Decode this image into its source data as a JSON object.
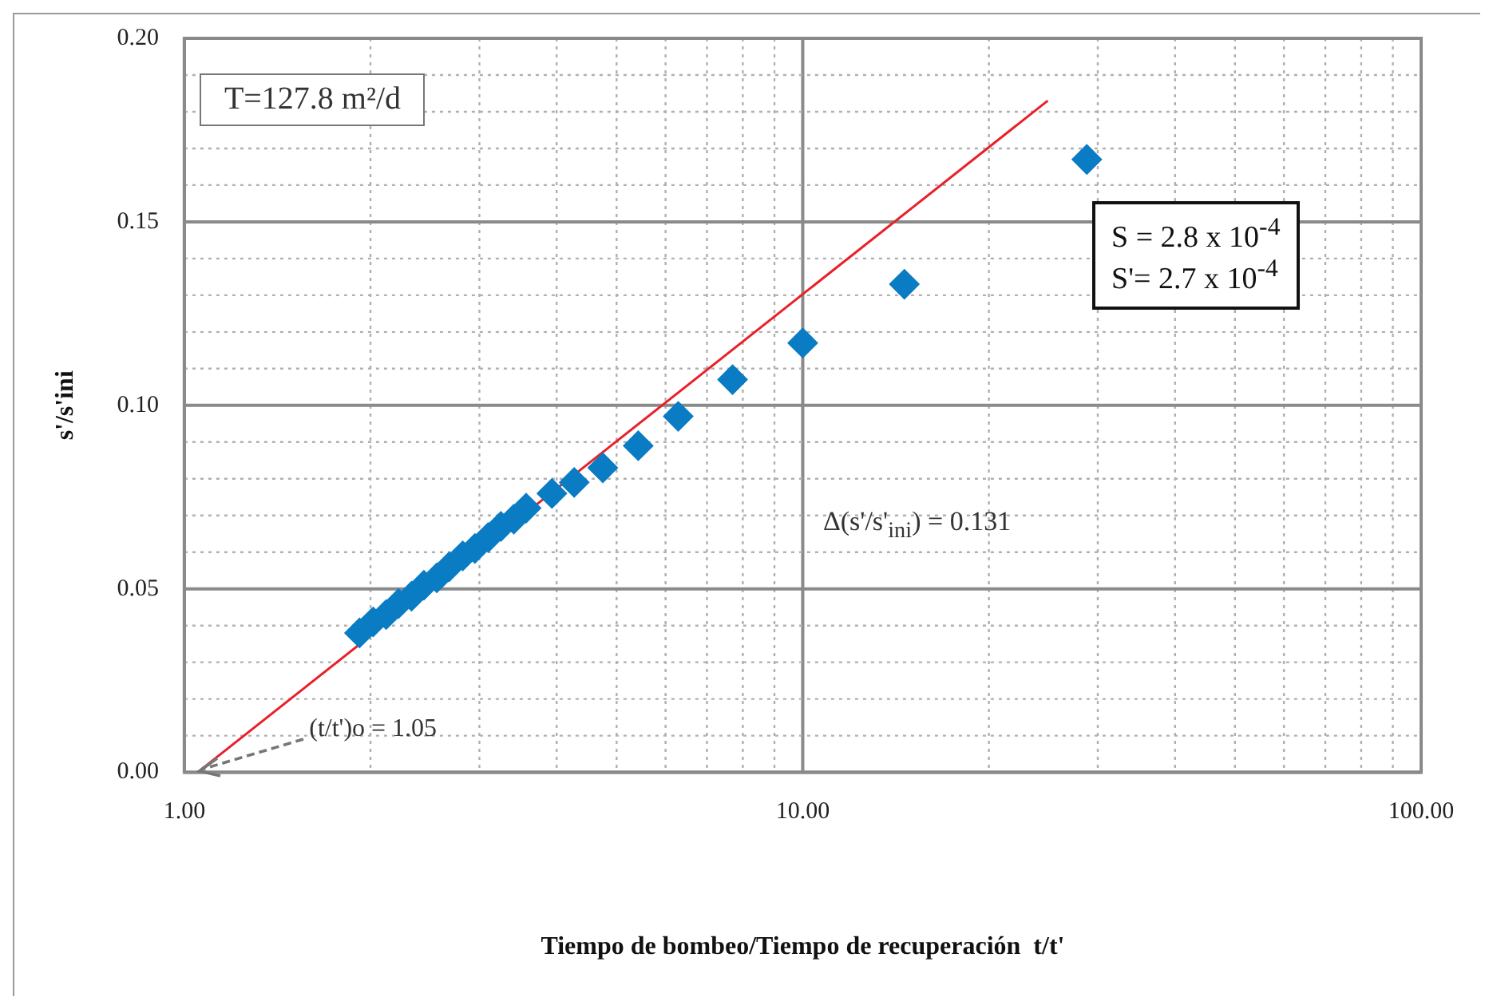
{
  "chart_data": {
    "type": "scatter",
    "log": "x",
    "xlabel": "Tiempo de bombeo/Tiempo de recuperación  t/t'",
    "ylabel": "s'/s'ini",
    "grid": true,
    "marker": "diamond",
    "xlim": [
      1,
      100
    ],
    "xticks": [
      {
        "value": 1,
        "label": "1.00"
      },
      {
        "value": 2,
        "label": null
      },
      {
        "value": 3,
        "label": null
      },
      {
        "value": 4,
        "label": null
      },
      {
        "value": 5,
        "label": null
      },
      {
        "value": 6,
        "label": null
      },
      {
        "value": 7,
        "label": null
      },
      {
        "value": 8,
        "label": null
      },
      {
        "value": 9,
        "label": null
      },
      {
        "value": 10,
        "label": "10.00"
      },
      {
        "value": 20,
        "label": null
      },
      {
        "value": 30,
        "label": null
      },
      {
        "value": 40,
        "label": null
      },
      {
        "value": 50,
        "label": null
      },
      {
        "value": 60,
        "label": null
      },
      {
        "value": 70,
        "label": null
      },
      {
        "value": 80,
        "label": null
      },
      {
        "value": 90,
        "label": null
      },
      {
        "value": 100,
        "label": "100.00"
      }
    ],
    "ylim": [
      0,
      0.2
    ],
    "yticks": [
      {
        "value": 0,
        "label": "0.00"
      },
      {
        "value": 0.01,
        "label": null
      },
      {
        "value": 0.02,
        "label": null
      },
      {
        "value": 0.03,
        "label": null
      },
      {
        "value": 0.04,
        "label": null
      },
      0.05,
      {
        "value": 0.06,
        "label": null
      },
      {
        "value": 0.07,
        "label": null
      },
      {
        "value": 0.08,
        "label": null
      },
      {
        "value": 0.09,
        "label": null
      },
      {
        "value": 0.1,
        "label": "0.10"
      },
      {
        "value": 0.11,
        "label": null
      },
      {
        "value": 0.12,
        "label": null
      },
      {
        "value": 0.13,
        "label": null
      },
      {
        "value": 0.14,
        "label": null
      },
      0.15,
      {
        "value": 0.16,
        "label": null
      },
      {
        "value": 0.17,
        "label": null
      },
      {
        "value": 0.18,
        "label": null
      },
      {
        "value": 0.19,
        "label": null
      },
      {
        "value": 0.2,
        "label": "0.20"
      }
    ],
    "series": [
      {
        "color": "#0a7cc4",
        "x": [
          1.92,
          2.02,
          2.12,
          2.22,
          2.33,
          2.44,
          2.56,
          2.68,
          2.82,
          2.95,
          3.1,
          3.25,
          3.41,
          3.57,
          3.93,
          4.27,
          4.75,
          5.42,
          6.29,
          7.7,
          10,
          14.6,
          28.8
        ],
        "values": [
          0.038,
          0.041,
          0.043,
          0.046,
          0.048,
          0.051,
          0.053,
          0.056,
          0.059,
          0.061,
          0.064,
          0.067,
          0.069,
          0.072,
          0.076,
          0.079,
          0.083,
          0.089,
          0.097,
          0.107,
          0.117,
          0.133,
          0.167
        ]
      },
      {
        "type": "line",
        "color": "#e8202a",
        "marker": "none",
        "x": [
          1.05,
          24.9
        ],
        "values": [
          0,
          0.183
        ]
      }
    ],
    "annotations": [
      "T=127.8 m²/d",
      "S = 2.8 x 10$^{-4}$\nS'= 2.7 x 10$^{-4}$",
      "Δ(s'/s'$_{ini}$) = 0.131",
      {
        "text": "(t/t')o = 1.05",
        "x": 1.05,
        "y": 0
      }
    ]
  }
}
